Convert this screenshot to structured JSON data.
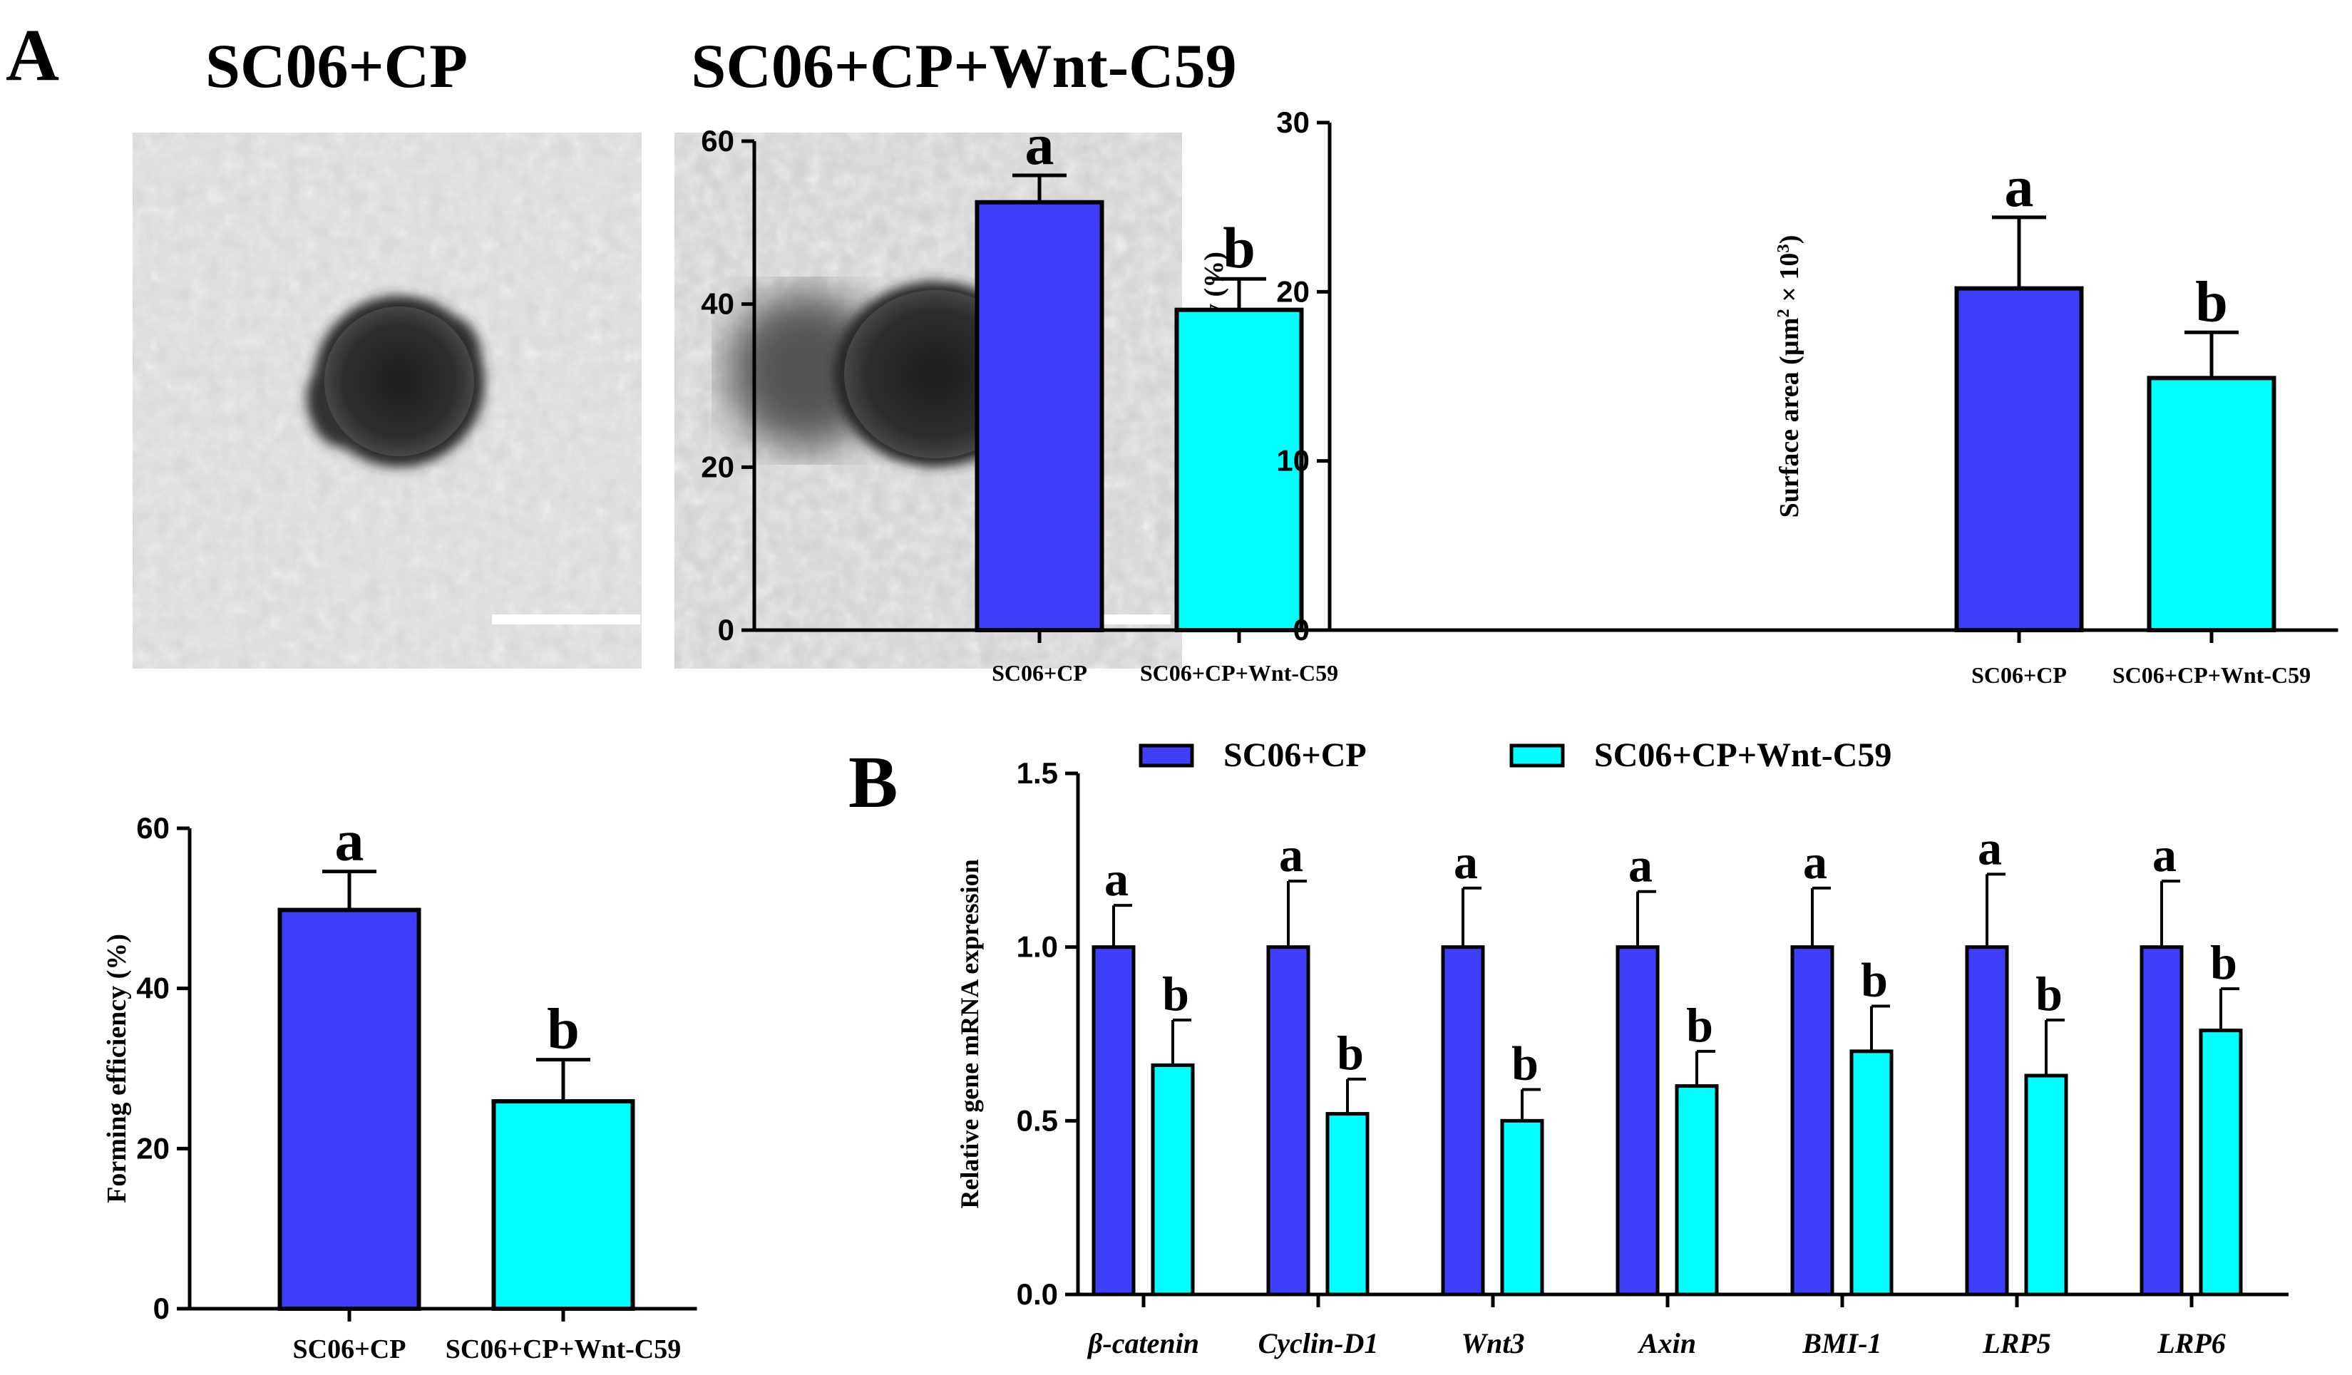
{
  "panel_labels": {
    "a": "A",
    "b": "B"
  },
  "micrographs": {
    "group1_label": "SC06+CP",
    "group2_label": "SC06+CP+Wnt-C59"
  },
  "colors": {
    "group1": "#3f3ffb",
    "group2": "#00ffff",
    "axis": "#000000"
  },
  "chart_data": [
    {
      "id": "building",
      "type": "bar",
      "ylabel": "Building efficiency (%)",
      "categories": [
        "SC06+CP",
        "SC06+CP+Wnt-C59"
      ],
      "values": [
        52.5,
        39.3
      ],
      "errors": [
        3.3,
        3.8
      ],
      "letters": [
        "a",
        "b"
      ],
      "ylim": [
        0,
        60
      ],
      "yticks": [
        "0",
        "20",
        "40",
        "60"
      ]
    },
    {
      "id": "surface",
      "type": "bar",
      "ylabel": "Surface area (µm² × 10³)",
      "ylabel_parts": [
        "Surface area (µm",
        "2",
        " × 10",
        "3",
        ")"
      ],
      "categories": [
        "SC06+CP",
        "SC06+CP+Wnt-C59"
      ],
      "values": [
        20.2,
        14.9
      ],
      "errors": [
        4.2,
        2.7
      ],
      "letters": [
        "a",
        "b"
      ],
      "ylim": [
        0,
        30
      ],
      "yticks": [
        "0",
        "10",
        "20",
        "30"
      ]
    },
    {
      "id": "forming",
      "type": "bar",
      "ylabel": "Forming efficiency (%)",
      "categories": [
        "SC06+CP",
        "SC06+CP+Wnt-C59"
      ],
      "values": [
        49.8,
        25.9
      ],
      "errors": [
        4.8,
        5.2
      ],
      "letters": [
        "a",
        "b"
      ],
      "ylim": [
        0,
        60
      ],
      "yticks": [
        "0",
        "20",
        "40",
        "60"
      ]
    },
    {
      "id": "gene",
      "type": "bar",
      "ylabel": "Relative gene mRNA expression",
      "categories": [
        "β-catenin",
        "Cyclin-D1",
        "Wnt3",
        "Axin",
        "BMI-1",
        "LRP5",
        "LRP6"
      ],
      "series": [
        {
          "name": "SC06+CP",
          "values": [
            1.0,
            1.0,
            1.0,
            1.0,
            1.0,
            1.0,
            1.0
          ],
          "errors": [
            0.12,
            0.19,
            0.17,
            0.16,
            0.17,
            0.21,
            0.19
          ],
          "letters": [
            "a",
            "a",
            "a",
            "a",
            "a",
            "a",
            "a"
          ]
        },
        {
          "name": "SC06+CP+Wnt-C59",
          "values": [
            0.66,
            0.52,
            0.5,
            0.6,
            0.7,
            0.63,
            0.76
          ],
          "errors": [
            0.13,
            0.1,
            0.09,
            0.1,
            0.13,
            0.16,
            0.12
          ],
          "letters": [
            "b",
            "b",
            "b",
            "b",
            "b",
            "b",
            "b"
          ]
        }
      ],
      "ylim": [
        0,
        1.5
      ],
      "yticks": [
        "0.0",
        "0.5",
        "1.0",
        "1.5"
      ],
      "legend": "top"
    }
  ]
}
